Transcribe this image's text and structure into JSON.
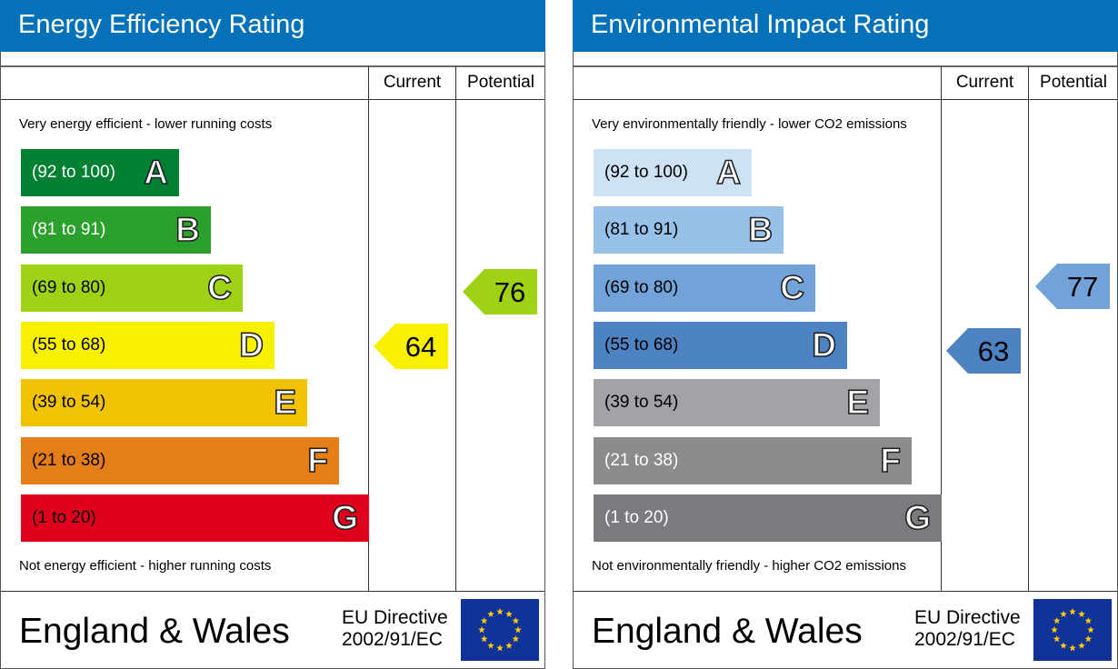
{
  "chart_data": [
    {
      "type": "table",
      "title": "Energy Efficiency Rating",
      "columns": [
        "Current",
        "Potential"
      ],
      "top_caption": "Very energy efficient - lower running costs",
      "bottom_caption": "Not energy efficient - higher running costs",
      "bands": [
        {
          "letter": "A",
          "range": "(92 to 100)",
          "min": 92,
          "max": 100,
          "color": "#008033",
          "text_color": "#ffffff"
        },
        {
          "letter": "B",
          "range": "(81 to 91)",
          "min": 81,
          "max": 91,
          "color": "#2ca02c",
          "text_color": "#ffffff"
        },
        {
          "letter": "C",
          "range": "(69 to 80)",
          "min": 69,
          "max": 80,
          "color": "#9fd114",
          "text_color": "#000000"
        },
        {
          "letter": "D",
          "range": "(55 to 68)",
          "min": 55,
          "max": 68,
          "color": "#f7f100",
          "text_color": "#000000"
        },
        {
          "letter": "E",
          "range": "(39 to 54)",
          "min": 39,
          "max": 54,
          "color": "#f0c200",
          "text_color": "#000000"
        },
        {
          "letter": "F",
          "range": "(21 to 38)",
          "min": 21,
          "max": 38,
          "color": "#e67e17",
          "text_color": "#000000"
        },
        {
          "letter": "G",
          "range": "(1 to 20)",
          "min": 1,
          "max": 20,
          "color": "#e0001e",
          "text_color": "#000000"
        }
      ],
      "current": {
        "value": 64,
        "band": "D",
        "color": "#f7f100"
      },
      "potential": {
        "value": 76,
        "band": "C",
        "color": "#9fd114"
      },
      "footer": {
        "country": "England & Wales",
        "directive_line1": "EU Directive",
        "directive_line2": "2002/91/EC"
      }
    },
    {
      "type": "table",
      "title": "Environmental Impact Rating",
      "columns": [
        "Current",
        "Potential"
      ],
      "top_caption": "Very environmentally friendly - lower CO2 emissions",
      "bottom_caption": "Not environmentally friendly - higher CO2 emissions",
      "bands": [
        {
          "letter": "A",
          "range": "(92 to 100)",
          "min": 92,
          "max": 100,
          "color": "#cde2f5",
          "text_color": "#000000"
        },
        {
          "letter": "B",
          "range": "(81 to 91)",
          "min": 81,
          "max": 91,
          "color": "#97c1e8",
          "text_color": "#000000"
        },
        {
          "letter": "C",
          "range": "(69 to 80)",
          "min": 69,
          "max": 80,
          "color": "#72a3d8",
          "text_color": "#000000"
        },
        {
          "letter": "D",
          "range": "(55 to 68)",
          "min": 55,
          "max": 68,
          "color": "#4d82c3",
          "text_color": "#000000"
        },
        {
          "letter": "E",
          "range": "(39 to 54)",
          "min": 39,
          "max": 54,
          "color": "#a2a3a6",
          "text_color": "#000000"
        },
        {
          "letter": "F",
          "range": "(21 to 38)",
          "min": 21,
          "max": 38,
          "color": "#8c8c8e",
          "text_color": "#ffffff"
        },
        {
          "letter": "G",
          "range": "(1 to 20)",
          "min": 1,
          "max": 20,
          "color": "#7b7b7f",
          "text_color": "#ffffff"
        }
      ],
      "current": {
        "value": 63,
        "band": "D",
        "color": "#4d82c3"
      },
      "potential": {
        "value": 77,
        "band": "C",
        "color": "#72a3d8"
      },
      "footer": {
        "country": "England & Wales",
        "directive_line1": "EU Directive",
        "directive_line2": "2002/91/EC"
      }
    }
  ],
  "colors": {
    "header_blue": "#0571b8",
    "eu_flag_blue": "#113399",
    "eu_star_yellow": "#ffcc00"
  },
  "icons": {
    "eu_flag": "eu-flag-icon"
  }
}
